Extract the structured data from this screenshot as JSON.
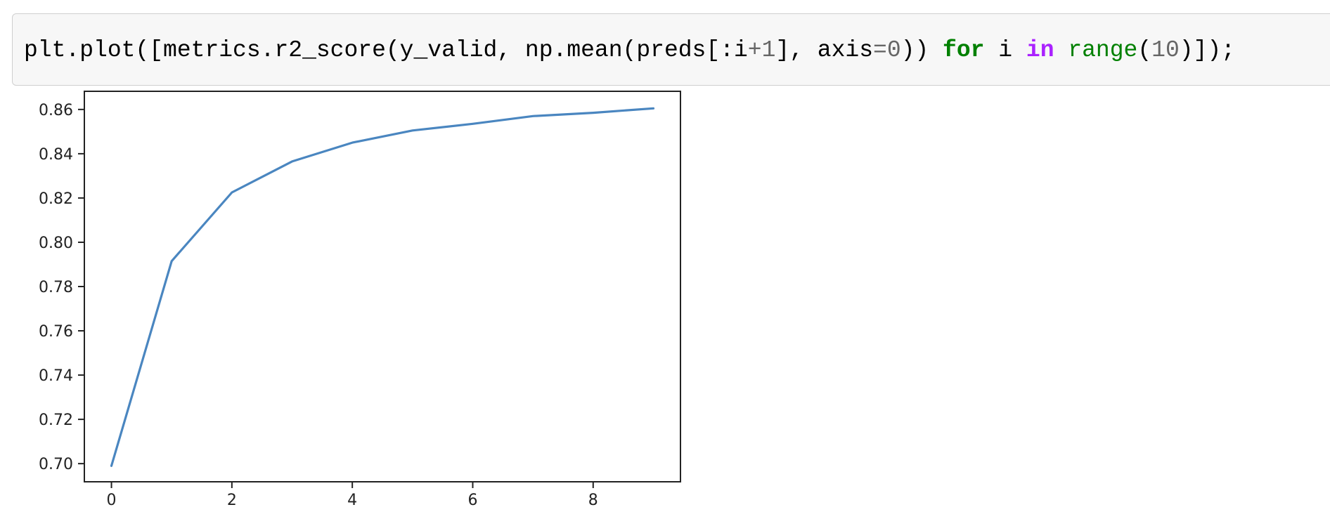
{
  "cell": {
    "code_tokens": [
      {
        "text": "plt.plot([metrics.r2_score(y_valid, np.mean(preds[:i",
        "cls": ""
      },
      {
        "text": "+1",
        "cls": "tok-num"
      },
      {
        "text": "], axis",
        "cls": ""
      },
      {
        "text": "=0",
        "cls": "tok-eq"
      },
      {
        "text": ")) ",
        "cls": ""
      },
      {
        "text": "for",
        "cls": "tok-kw"
      },
      {
        "text": " i ",
        "cls": ""
      },
      {
        "text": "in",
        "cls": "tok-op"
      },
      {
        "text": " ",
        "cls": ""
      },
      {
        "text": "range",
        "cls": "tok-builtin"
      },
      {
        "text": "(",
        "cls": ""
      },
      {
        "text": "10",
        "cls": "tok-num"
      },
      {
        "text": ")]);",
        "cls": ""
      }
    ]
  },
  "chart_data": {
    "type": "line",
    "title": "",
    "xlabel": "",
    "ylabel": "",
    "xlim": [
      -0.45,
      9.45
    ],
    "ylim": [
      0.6918,
      0.8682
    ],
    "x_ticks": [
      0,
      2,
      4,
      6,
      8
    ],
    "y_ticks": [
      0.7,
      0.72,
      0.74,
      0.76,
      0.78,
      0.8,
      0.82,
      0.84,
      0.86
    ],
    "y_tick_labels": [
      "0.70",
      "0.72",
      "0.74",
      "0.76",
      "0.78",
      "0.80",
      "0.82",
      "0.84",
      "0.86"
    ],
    "grid": false,
    "series": [
      {
        "color": "#4a86c0",
        "x": [
          0,
          1,
          2,
          3,
          4,
          5,
          6,
          7,
          8,
          9
        ],
        "values": [
          0.699,
          0.7915,
          0.8225,
          0.8365,
          0.845,
          0.8505,
          0.8535,
          0.857,
          0.8585,
          0.8605
        ]
      }
    ]
  }
}
